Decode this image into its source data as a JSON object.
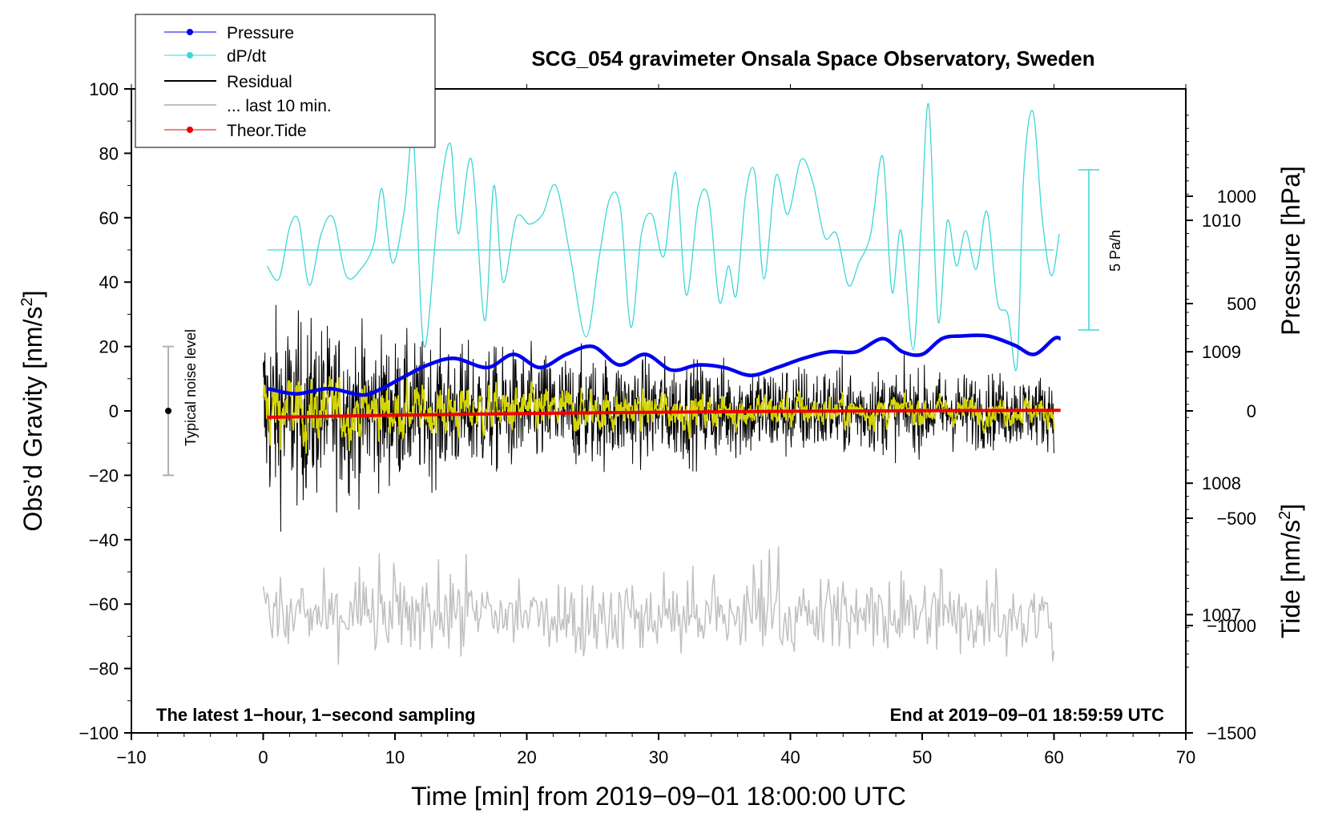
{
  "chart_data": {
    "type": "line",
    "title": "SCG_054 gravimeter Onsala Space Observatory, Sweden",
    "xlabel": "Time [min] from 2019−09−01 18:00:00 UTC",
    "ylabel_left_main": "Obs’d Gravity [nm/s",
    "ylabel_left_sup": "2",
    "ylabel_left_end": "]",
    "ylabel_right_pressure": "Pressure [hPa]",
    "ylabel_right_tide_main": "Tide [nm/s",
    "ylabel_right_tide_sup": "2",
    "ylabel_right_tide_end": "]",
    "xlim": [
      -10,
      70
    ],
    "ylim": [
      -100,
      100
    ],
    "pressure_lim": [
      1006.1,
      1011.0
    ],
    "tide_lim": [
      -1500,
      1500
    ],
    "x_ticks": [
      "−10",
      "0",
      "10",
      "20",
      "30",
      "40",
      "50",
      "60",
      "70"
    ],
    "y_ticks": [
      "100",
      "80",
      "60",
      "40",
      "20",
      "0",
      "−20",
      "−40",
      "−60",
      "−80",
      "−100"
    ],
    "pressure_ticks": [
      "1010",
      "1009",
      "1008",
      "1007"
    ],
    "tide_ticks": [
      "1000",
      "500",
      "0",
      "−500",
      "−1000",
      "−1500"
    ],
    "note_left": "The latest 1−hour, 1−second sampling",
    "note_right": "End at 2019−09−01 18:59:59 UTC",
    "noise_label": "Typical noise level",
    "noise_bar": [
      -20,
      20
    ],
    "dpdt_scale_label": "5 Pa/h",
    "legend": [
      "Pressure",
      "dP/dt",
      "Residual",
      "... last 10 min.",
      "Theor.Tide"
    ],
    "series": [
      {
        "name": "Pressure",
        "unit": "hPa",
        "color": "#0000ee",
        "x": [
          0.3,
          2.5,
          5.0,
          7.5,
          9.0,
          10.5,
          12.5,
          14.5,
          17.0,
          19.0,
          21.0,
          23.0,
          25.0,
          27.0,
          29.0,
          31.0,
          33.0,
          35.0,
          37.0,
          39.0,
          41.0,
          43.0,
          45.0,
          47.0,
          48.5,
          50.0,
          51.5,
          53.0,
          55.0,
          57.0,
          58.5,
          60.0,
          60.5
        ],
        "values": [
          1008.72,
          1008.68,
          1008.72,
          1008.67,
          1008.72,
          1008.8,
          1008.9,
          1008.95,
          1008.88,
          1008.98,
          1008.88,
          1008.98,
          1009.04,
          1008.9,
          1008.98,
          1008.86,
          1008.9,
          1008.88,
          1008.82,
          1008.88,
          1008.95,
          1009.0,
          1009.0,
          1009.1,
          1009.0,
          1008.98,
          1009.1,
          1009.12,
          1009.12,
          1009.05,
          1008.98,
          1009.1,
          1009.1
        ]
      },
      {
        "name": "dP/dt",
        "unit": "nm/s2-scaled",
        "color": "#3fd6d6",
        "baseline": 50,
        "x": [
          0.3,
          1.2,
          2.0,
          2.7,
          3.5,
          4.4,
          5.3,
          6.3,
          7.4,
          8.4,
          9.0,
          9.8,
          10.7,
          11.4,
          12.2,
          13.3,
          14.2,
          14.8,
          15.8,
          16.8,
          17.5,
          18.2,
          19.2,
          20.2,
          21.2,
          22.2,
          23.3,
          24.5,
          25.5,
          26.3,
          27.1,
          27.9,
          28.7,
          29.5,
          30.4,
          31.3,
          32.1,
          33.0,
          33.8,
          34.6,
          35.3,
          35.9,
          36.6,
          37.3,
          38.0,
          38.9,
          39.8,
          40.8,
          41.7,
          42.6,
          43.5,
          44.4,
          45.2,
          46.1,
          47.0,
          47.7,
          48.4,
          49.3,
          49.9,
          50.5,
          51.2,
          51.9,
          52.6,
          53.3,
          54.1,
          54.9,
          55.7,
          56.5,
          57.2,
          57.7,
          58.4,
          59.1,
          59.8,
          60.4
        ],
        "values": [
          45,
          41,
          57,
          59,
          39,
          55,
          60,
          42,
          44,
          52,
          69,
          46,
          62,
          84,
          20,
          64,
          83,
          55,
          78,
          28,
          70,
          40,
          60,
          58,
          61,
          70,
          48,
          23,
          48,
          66,
          63,
          26,
          55,
          61,
          48,
          74,
          36,
          64,
          66,
          34,
          45,
          36,
          67,
          74,
          41,
          73,
          61,
          78,
          71,
          54,
          55,
          39,
          46,
          55,
          79,
          37,
          56,
          19,
          56,
          95,
          28,
          59,
          45,
          56,
          44,
          62,
          34,
          30,
          14,
          73,
          93,
          60,
          42,
          55
        ]
      },
      {
        "name": "Residual",
        "unit": "nm/s2",
        "color": "#000000",
        "description_text": "",
        "envelope_x": [
          0,
          10,
          20,
          30,
          40,
          50,
          60
        ],
        "envelope_amplitude": [
          25,
          18,
          15,
          13,
          12,
          10,
          9
        ]
      },
      {
        "name": "... last 10 min.",
        "unit": "nm/s2",
        "color": "#c0c0c0",
        "mean": -64,
        "amplitude": 9
      },
      {
        "name": "Residual (smoothed)",
        "unit": "nm/s2",
        "color": "#d4d400"
      },
      {
        "name": "Theor.Tide",
        "unit": "nm/s2",
        "color": "#ee0000",
        "x": [
          0.3,
          10,
          20,
          30,
          40,
          50,
          60.5
        ],
        "values": [
          -30,
          -20,
          -12,
          -6,
          -2,
          1,
          3
        ]
      }
    ]
  },
  "colors": {
    "pressure": "#0000ee",
    "dpdt": "#3fd6d6",
    "residual": "#000000",
    "last10": "#c0c0c0",
    "smooth": "#d4d400",
    "tide": "#ee0000",
    "noise": "#b0b0b0"
  }
}
